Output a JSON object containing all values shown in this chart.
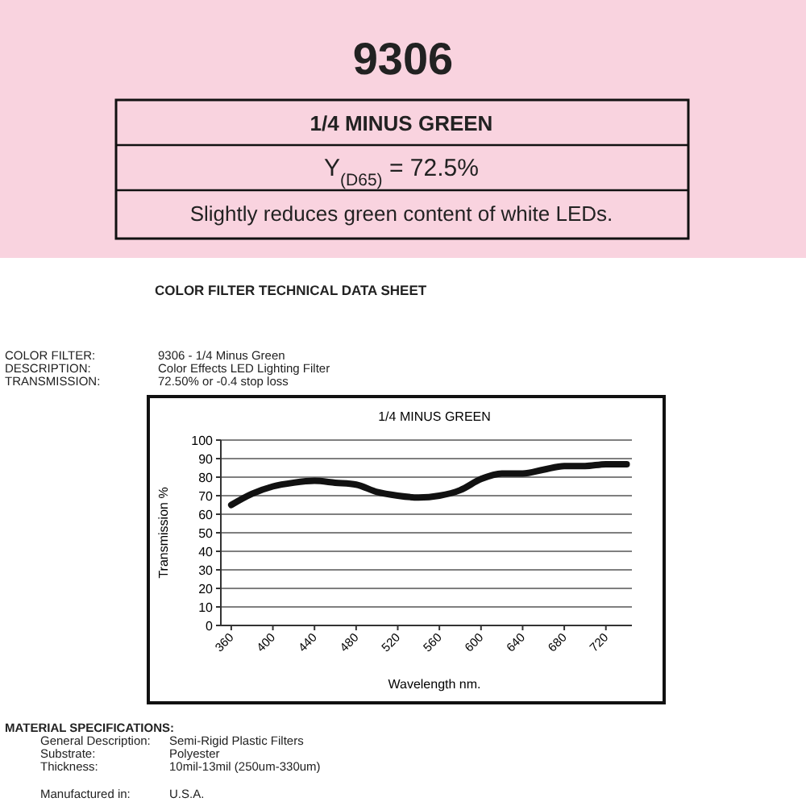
{
  "chart_data": {
    "type": "line",
    "title": "1/4 MINUS GREEN",
    "xlabel": "Wavelength nm.",
    "ylabel": "Transmission %",
    "annotations": [
      "9306",
      "1/4 MINUS GREEN",
      "Y$_{(D65)}$ = 72.5%",
      "Slightly reduces green content of white LEDs.",
      "COLOR FILTER TECHNICAL DATA SHEET",
      "COLOR FILTER:",
      "9306 - 1/4 Minus Green",
      "DESCRIPTION:",
      "Color Effects LED Lighting Filter",
      "TRANSMISSION:",
      "72.50% or -0.4 stop loss",
      "MATERIAL SPECIFICATIONS:",
      "General Description:",
      "Semi-Rigid Plastic Filters",
      "Substrate:",
      "Polyester",
      "Thickness:",
      "10mil-13mil (250um-330um)",
      "Manufactured in:",
      "U.S.A."
    ],
    "x": [
      360,
      380,
      400,
      420,
      440,
      460,
      480,
      500,
      520,
      540,
      560,
      580,
      600,
      620,
      640,
      660,
      680,
      700,
      720,
      740
    ],
    "series": [
      {
        "color": "#111111",
        "values": [
          65,
          71,
          75,
          77,
          78,
          77,
          76,
          72,
          70,
          69,
          70,
          73,
          79,
          82,
          82,
          84,
          86,
          86,
          87,
          87
        ]
      }
    ],
    "xlim": [
      350,
      745
    ],
    "xticks": [
      360,
      400,
      440,
      480,
      520,
      560,
      600,
      640,
      680,
      720
    ],
    "ylim": [
      0,
      100
    ],
    "yticks": [
      0,
      10,
      20,
      30,
      40,
      50,
      60,
      70,
      80,
      90,
      100
    ],
    "grid": "y",
    "marker": "none",
    "line_style": "solid"
  }
}
